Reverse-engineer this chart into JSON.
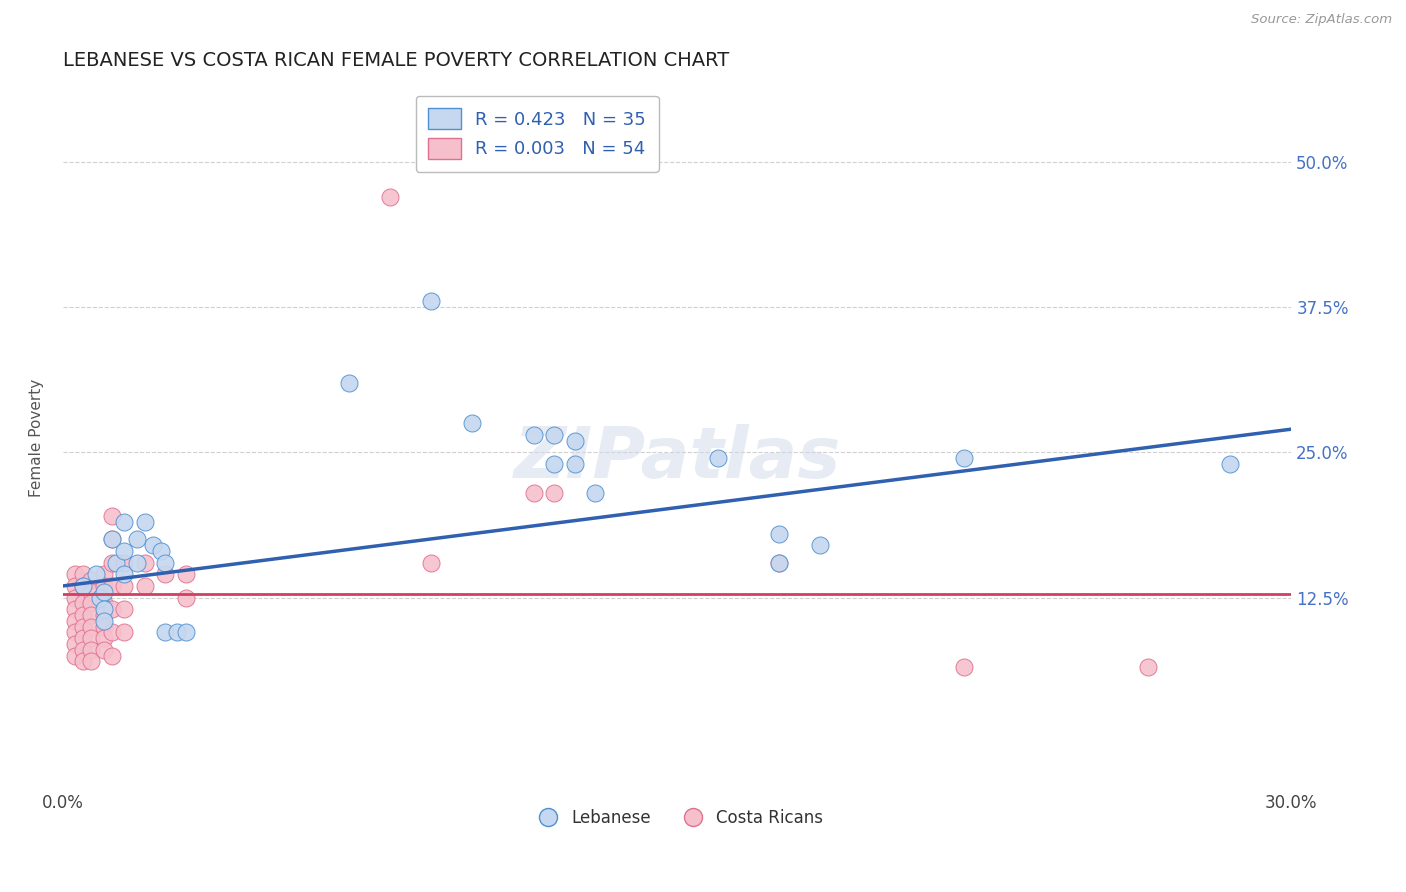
{
  "title": "LEBANESE VS COSTA RICAN FEMALE POVERTY CORRELATION CHART",
  "source": "Source: ZipAtlas.com",
  "ylabel": "Female Poverty",
  "xlim": [
    0.0,
    0.3
  ],
  "ylim": [
    -0.04,
    0.565
  ],
  "xticks": [
    0.0,
    0.05,
    0.1,
    0.15,
    0.2,
    0.25,
    0.3
  ],
  "xticklabels": [
    "0.0%",
    "",
    "",
    "",
    "",
    "",
    "30.0%"
  ],
  "ytick_positions": [
    0.125,
    0.25,
    0.375,
    0.5
  ],
  "ytick_labels": [
    "12.5%",
    "25.0%",
    "37.5%",
    "50.0%"
  ],
  "watermark": "ZIPatlas",
  "blue_R": "0.423",
  "blue_N": "35",
  "pink_R": "0.003",
  "pink_N": "54",
  "blue_fill_color": "#c5d8f0",
  "pink_fill_color": "#f5c0cc",
  "blue_edge_color": "#5090d0",
  "pink_edge_color": "#e07090",
  "blue_line_color": "#3060b0",
  "pink_line_color": "#d04060",
  "legend_blue_label": "Lebanese",
  "legend_pink_label": "Costa Ricans",
  "blue_points": [
    [
      0.005,
      0.135
    ],
    [
      0.008,
      0.145
    ],
    [
      0.009,
      0.125
    ],
    [
      0.01,
      0.13
    ],
    [
      0.01,
      0.115
    ],
    [
      0.01,
      0.105
    ],
    [
      0.012,
      0.175
    ],
    [
      0.013,
      0.155
    ],
    [
      0.015,
      0.19
    ],
    [
      0.015,
      0.165
    ],
    [
      0.015,
      0.145
    ],
    [
      0.018,
      0.175
    ],
    [
      0.018,
      0.155
    ],
    [
      0.02,
      0.19
    ],
    [
      0.022,
      0.17
    ],
    [
      0.024,
      0.165
    ],
    [
      0.025,
      0.155
    ],
    [
      0.025,
      0.095
    ],
    [
      0.028,
      0.095
    ],
    [
      0.03,
      0.095
    ],
    [
      0.07,
      0.31
    ],
    [
      0.09,
      0.38
    ],
    [
      0.1,
      0.275
    ],
    [
      0.115,
      0.265
    ],
    [
      0.12,
      0.265
    ],
    [
      0.12,
      0.24
    ],
    [
      0.125,
      0.26
    ],
    [
      0.125,
      0.24
    ],
    [
      0.13,
      0.215
    ],
    [
      0.16,
      0.245
    ],
    [
      0.175,
      0.18
    ],
    [
      0.175,
      0.155
    ],
    [
      0.185,
      0.17
    ],
    [
      0.22,
      0.245
    ],
    [
      0.285,
      0.24
    ]
  ],
  "pink_points": [
    [
      0.003,
      0.145
    ],
    [
      0.003,
      0.135
    ],
    [
      0.003,
      0.125
    ],
    [
      0.003,
      0.115
    ],
    [
      0.003,
      0.105
    ],
    [
      0.003,
      0.095
    ],
    [
      0.003,
      0.085
    ],
    [
      0.003,
      0.075
    ],
    [
      0.005,
      0.145
    ],
    [
      0.005,
      0.135
    ],
    [
      0.005,
      0.12
    ],
    [
      0.005,
      0.11
    ],
    [
      0.005,
      0.1
    ],
    [
      0.005,
      0.09
    ],
    [
      0.005,
      0.08
    ],
    [
      0.005,
      0.07
    ],
    [
      0.007,
      0.14
    ],
    [
      0.007,
      0.13
    ],
    [
      0.007,
      0.12
    ],
    [
      0.007,
      0.11
    ],
    [
      0.007,
      0.1
    ],
    [
      0.007,
      0.09
    ],
    [
      0.007,
      0.08
    ],
    [
      0.007,
      0.07
    ],
    [
      0.01,
      0.145
    ],
    [
      0.01,
      0.135
    ],
    [
      0.01,
      0.12
    ],
    [
      0.01,
      0.11
    ],
    [
      0.01,
      0.1
    ],
    [
      0.01,
      0.09
    ],
    [
      0.01,
      0.08
    ],
    [
      0.012,
      0.195
    ],
    [
      0.012,
      0.175
    ],
    [
      0.012,
      0.155
    ],
    [
      0.012,
      0.135
    ],
    [
      0.012,
      0.115
    ],
    [
      0.012,
      0.095
    ],
    [
      0.012,
      0.075
    ],
    [
      0.015,
      0.155
    ],
    [
      0.015,
      0.135
    ],
    [
      0.015,
      0.115
    ],
    [
      0.015,
      0.095
    ],
    [
      0.02,
      0.155
    ],
    [
      0.02,
      0.135
    ],
    [
      0.025,
      0.145
    ],
    [
      0.03,
      0.145
    ],
    [
      0.03,
      0.125
    ],
    [
      0.08,
      0.47
    ],
    [
      0.09,
      0.155
    ],
    [
      0.115,
      0.215
    ],
    [
      0.12,
      0.215
    ],
    [
      0.175,
      0.155
    ],
    [
      0.22,
      0.065
    ],
    [
      0.265,
      0.065
    ]
  ],
  "blue_line_x": [
    0.0,
    0.3
  ],
  "blue_line_y_start": 0.135,
  "blue_line_y_end": 0.27,
  "pink_line_y": 0.128,
  "grid_color": "#d0d0d0",
  "background_color": "#ffffff",
  "title_fontsize": 14,
  "axis_label_fontsize": 11,
  "legend_text_color": "#3060b0"
}
